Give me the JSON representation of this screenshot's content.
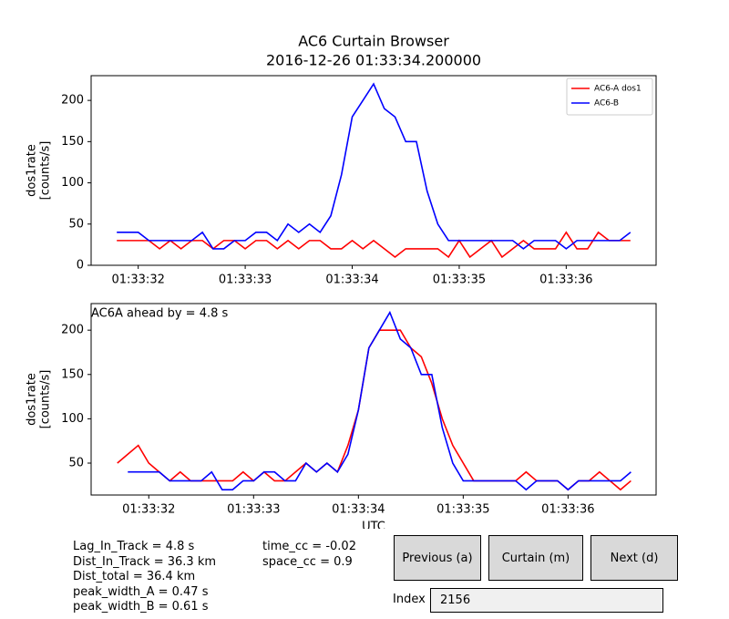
{
  "chart_data": [
    {
      "type": "line",
      "title": "AC6 Curtain Browser",
      "subtitle": "2016-12-26 01:33:34.200000",
      "ylabel": [
        "dos1rate",
        "[counts/s]"
      ],
      "xlim": [
        31.56,
        36.84
      ],
      "ylim": [
        0,
        230
      ],
      "xticks": [
        {
          "value": 32,
          "label": "01:33:32"
        },
        {
          "value": 33,
          "label": "01:33:33"
        },
        {
          "value": 34,
          "label": "01:33:34"
        },
        {
          "value": 35,
          "label": "01:33:35"
        },
        {
          "value": 36,
          "label": "01:33:36"
        }
      ],
      "yticks": [
        0,
        50,
        100,
        150,
        200
      ],
      "legend": "upper right",
      "series": [
        {
          "name": "AC6-A dos1",
          "color": "#ff0000",
          "x": [
            31.8,
            31.9,
            32.0,
            32.1,
            32.2,
            32.3,
            32.4,
            32.5,
            32.6,
            32.7,
            32.8,
            32.9,
            33.0,
            33.1,
            33.2,
            33.3,
            33.4,
            33.5,
            33.6,
            33.7,
            33.8,
            33.9,
            34.0,
            34.1,
            34.2,
            34.3,
            34.4,
            34.5,
            34.6,
            34.7,
            34.8,
            34.9,
            35.0,
            35.1,
            35.2,
            35.3,
            35.4,
            35.5,
            35.6,
            35.7,
            35.8,
            35.9,
            36.0,
            36.1,
            36.2,
            36.3,
            36.4,
            36.5,
            36.6
          ],
          "values": [
            30,
            30,
            30,
            30,
            20,
            30,
            20,
            30,
            30,
            20,
            30,
            30,
            20,
            30,
            30,
            20,
            30,
            20,
            30,
            30,
            20,
            20,
            30,
            20,
            30,
            20,
            10,
            20,
            20,
            20,
            20,
            10,
            30,
            10,
            20,
            30,
            10,
            20,
            30,
            20,
            20,
            20,
            40,
            20,
            20,
            40,
            30,
            30,
            30
          ]
        },
        {
          "name": "AC6-B",
          "color": "#0000ff",
          "x": [
            31.8,
            31.9,
            32.0,
            32.1,
            32.2,
            32.3,
            32.4,
            32.5,
            32.6,
            32.7,
            32.8,
            32.9,
            33.0,
            33.1,
            33.2,
            33.3,
            33.4,
            33.5,
            33.6,
            33.7,
            33.8,
            33.9,
            34.0,
            34.1,
            34.2,
            34.3,
            34.4,
            34.5,
            34.6,
            34.7,
            34.8,
            34.9,
            35.0,
            35.1,
            35.2,
            35.3,
            35.4,
            35.5,
            35.6,
            35.7,
            35.8,
            35.9,
            36.0,
            36.1,
            36.2,
            36.3,
            36.4,
            36.5,
            36.6
          ],
          "values": [
            40,
            40,
            40,
            30,
            30,
            30,
            30,
            30,
            40,
            20,
            20,
            30,
            30,
            40,
            40,
            30,
            50,
            40,
            50,
            40,
            60,
            110,
            180,
            200,
            220,
            190,
            180,
            150,
            150,
            90,
            50,
            30,
            30,
            30,
            30,
            30,
            30,
            30,
            20,
            30,
            30,
            30,
            20,
            30,
            30,
            30,
            30,
            30,
            40
          ]
        }
      ]
    },
    {
      "type": "line",
      "annotation": "AC6A ahead by = 4.8 s",
      "xlabel": "UTC",
      "ylabel": [
        "dos1rate",
        "[counts/s]"
      ],
      "xlim": [
        31.45,
        36.84
      ],
      "ylim": [
        14,
        230
      ],
      "xticks": [
        {
          "value": 32,
          "label": "01:33:32"
        },
        {
          "value": 33,
          "label": "01:33:33"
        },
        {
          "value": 34,
          "label": "01:33:34"
        },
        {
          "value": 35,
          "label": "01:33:35"
        },
        {
          "value": 36,
          "label": "01:33:36"
        }
      ],
      "yticks": [
        50,
        100,
        150,
        200
      ],
      "series": [
        {
          "color": "#ff0000",
          "x": [
            31.7,
            31.8,
            31.9,
            32.0,
            32.1,
            32.2,
            32.3,
            32.4,
            32.5,
            32.6,
            32.7,
            32.8,
            32.9,
            33.0,
            33.1,
            33.2,
            33.3,
            33.4,
            33.5,
            33.6,
            33.7,
            33.8,
            33.9,
            34.0,
            34.1,
            34.2,
            34.3,
            34.4,
            34.5,
            34.6,
            34.7,
            34.8,
            34.9,
            35.0,
            35.1,
            35.2,
            35.3,
            35.4,
            35.5,
            35.6,
            35.7,
            35.8,
            35.9,
            36.0,
            36.1,
            36.2,
            36.3,
            36.4,
            36.5,
            36.6
          ],
          "values": [
            50,
            60,
            70,
            50,
            40,
            30,
            40,
            30,
            30,
            30,
            30,
            30,
            40,
            30,
            40,
            30,
            30,
            40,
            50,
            40,
            50,
            40,
            70,
            110,
            180,
            200,
            200,
            200,
            180,
            170,
            140,
            100,
            70,
            50,
            30,
            30,
            30,
            30,
            30,
            40,
            30,
            30,
            30,
            20,
            30,
            30,
            40,
            30,
            20,
            30
          ]
        },
        {
          "color": "#0000ff",
          "x": [
            31.8,
            31.9,
            32.0,
            32.1,
            32.2,
            32.3,
            32.4,
            32.5,
            32.6,
            32.7,
            32.8,
            32.9,
            33.0,
            33.1,
            33.2,
            33.3,
            33.4,
            33.5,
            33.6,
            33.7,
            33.8,
            33.9,
            34.0,
            34.1,
            34.2,
            34.3,
            34.4,
            34.5,
            34.6,
            34.7,
            34.8,
            34.9,
            35.0,
            35.1,
            35.2,
            35.3,
            35.4,
            35.5,
            35.6,
            35.7,
            35.8,
            35.9,
            36.0,
            36.1,
            36.2,
            36.3,
            36.4,
            36.5,
            36.6
          ],
          "values": [
            40,
            40,
            40,
            40,
            30,
            30,
            30,
            30,
            40,
            20,
            20,
            30,
            30,
            40,
            40,
            30,
            30,
            50,
            40,
            50,
            40,
            60,
            110,
            180,
            200,
            220,
            190,
            180,
            150,
            150,
            90,
            50,
            30,
            30,
            30,
            30,
            30,
            30,
            20,
            30,
            30,
            30,
            20,
            30,
            30,
            30,
            30,
            30,
            40
          ]
        }
      ]
    }
  ],
  "stats": {
    "left": [
      "Lag_In_Track = 4.8 s",
      "Dist_In_Track = 36.3 km",
      "Dist_total = 36.4 km",
      "peak_width_A = 0.47 s",
      "peak_width_B = 0.61 s"
    ],
    "right": [
      "time_cc = -0.02",
      "space_cc = 0.9"
    ]
  },
  "controls": {
    "buttons": [
      "Previous (a)",
      "Curtain (m)",
      "Next (d)"
    ],
    "index_label": "Index",
    "index_value": "2156"
  }
}
